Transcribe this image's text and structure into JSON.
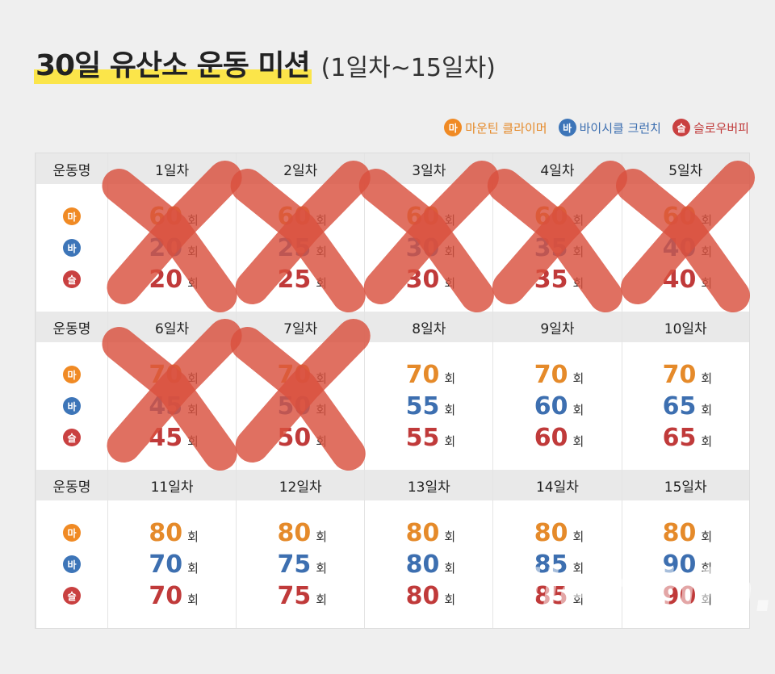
{
  "title": {
    "main": "30일 유산소 운동 미션",
    "sub": "(1일차~15일차)"
  },
  "legend": [
    {
      "badge": "마",
      "label": "마운틴 클라이머",
      "color": "#f08a24"
    },
    {
      "badge": "바",
      "label": "바이시클 크런치",
      "color": "#3d75b8"
    },
    {
      "badge": "슬",
      "label": "슬로우버피",
      "color": "#c94040"
    }
  ],
  "row_header": "운동명",
  "unit": "회",
  "badges": [
    "마",
    "바",
    "슬"
  ],
  "blocks": [
    {
      "days": [
        {
          "label": "1일차",
          "values": [
            "60",
            "20",
            "20"
          ]
        },
        {
          "label": "2일차",
          "values": [
            "60",
            "25",
            "25"
          ]
        },
        {
          "label": "3일차",
          "values": [
            "60",
            "30",
            "30"
          ]
        },
        {
          "label": "4일차",
          "values": [
            "60",
            "35",
            "35"
          ]
        },
        {
          "label": "5일차",
          "values": [
            "60",
            "40",
            "40"
          ]
        }
      ]
    },
    {
      "days": [
        {
          "label": "6일차",
          "values": [
            "70",
            "45",
            "45"
          ]
        },
        {
          "label": "7일차",
          "values": [
            "70",
            "50",
            "50"
          ]
        },
        {
          "label": "8일차",
          "values": [
            "70",
            "55",
            "55"
          ]
        },
        {
          "label": "9일차",
          "values": [
            "70",
            "60",
            "60"
          ]
        },
        {
          "label": "10일차",
          "values": [
            "70",
            "65",
            "65"
          ]
        }
      ]
    },
    {
      "days": [
        {
          "label": "11일차",
          "values": [
            "80",
            "70",
            "70"
          ]
        },
        {
          "label": "12일차",
          "values": [
            "80",
            "75",
            "75"
          ]
        },
        {
          "label": "13일차",
          "values": [
            "80",
            "80",
            "80"
          ]
        },
        {
          "label": "14일차",
          "values": [
            "80",
            "85",
            "85"
          ]
        },
        {
          "label": "15일차",
          "values": [
            "80",
            "90",
            "90"
          ]
        }
      ]
    }
  ],
  "completed_days": [
    "1일차",
    "2일차",
    "3일차",
    "4일차",
    "5일차",
    "6일차",
    "7일차"
  ],
  "watermark": "dietshin.com"
}
